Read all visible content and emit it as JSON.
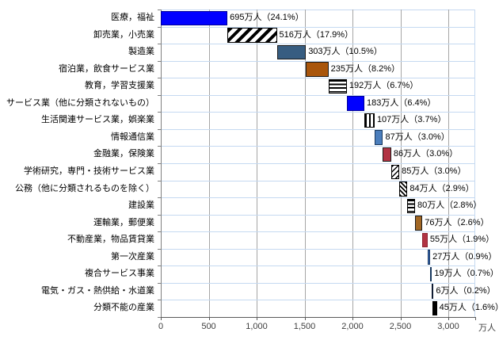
{
  "chart_data": {
    "type": "bar",
    "subtype": "horizontal-waterfall",
    "title": "",
    "unit_label": "万人",
    "total_value": 2881,
    "legend": "none",
    "x_axis": {
      "tick_values": [
        0,
        500,
        1000,
        1500,
        2000,
        2500,
        3000
      ],
      "tick_labels": [
        "0",
        "500",
        "1,000",
        "1,500",
        "2,000",
        "2,500",
        "3,000"
      ],
      "min": 0,
      "max_visible": 3280,
      "gridlines": "vertical-solid-gray"
    },
    "categories": [
      "医療，福祉",
      "卸売業，小売業",
      "製造業",
      "宿泊業，飲食サービス業",
      "教育，学習支援業",
      "サービス業（他に分類されないもの）",
      "生活関連サービス業，娯楽業",
      "情報通信業",
      "金融業，保険業",
      "学術研究，専門・技術サービス業",
      "公務（他に分類されるものを除く）",
      "建設業",
      "運輸業，郵便業",
      "不動産業，物品賃貸業",
      "第一次産業",
      "複合サービス事業",
      "電気・ガス・熱供給・水道業",
      "分類不能の産業"
    ],
    "values": [
      695,
      516,
      303,
      235,
      192,
      183,
      107,
      87,
      86,
      85,
      84,
      80,
      76,
      55,
      27,
      19,
      6,
      45
    ],
    "percentages": [
      24.1,
      17.9,
      10.5,
      8.2,
      6.7,
      6.4,
      3.7,
      3.0,
      3.0,
      3.0,
      2.9,
      2.8,
      2.6,
      1.9,
      0.9,
      0.7,
      0.2,
      1.6
    ],
    "data_labels": [
      "695万人（24.1%）",
      "516万人（17.9%）",
      "303万人（10.5%）",
      "235万人（8.2%）",
      "192万人（6.7%）",
      "183万人（6.4%）",
      "107万人（3.7%）",
      "87万人（3.0%）",
      "86万人（3.0%）",
      "85万人（3.0%）",
      "84万人（2.9%）",
      "80万人（2.8%）",
      "76万人（2.6%）",
      "55万人（1.9%）",
      "27万人（0.9%）",
      "19万人（0.7%）",
      "6万人（0.2%）",
      "45万人（1.6%）"
    ],
    "bar_styles": [
      {
        "pattern": "solid",
        "fill": "#0000FF",
        "border": "#000099"
      },
      {
        "pattern": "diagonal-wide",
        "fill": "#FFFFFF",
        "border": "#000000"
      },
      {
        "pattern": "solid",
        "fill": "#375D81",
        "border": "#1A1A1A"
      },
      {
        "pattern": "solid",
        "fill": "#A9560C",
        "border": "#1A1A1A"
      },
      {
        "pattern": "horizontal-lines",
        "fill": "#FFFFFF",
        "border": "#000000"
      },
      {
        "pattern": "solid",
        "fill": "#0000FF",
        "border": "#000099"
      },
      {
        "pattern": "vertical-lines",
        "fill": "#FFFFFF",
        "border": "#000000"
      },
      {
        "pattern": "solid",
        "fill": "#4B7EBC",
        "border": "#17375D"
      },
      {
        "pattern": "solid",
        "fill": "#B13343",
        "border": "#1A1A1A"
      },
      {
        "pattern": "diagonal-thin",
        "fill": "#FFFFFF",
        "border": "#000000"
      },
      {
        "pattern": "diagonal-thin-dense",
        "fill": "#FFFFFF",
        "border": "#000000"
      },
      {
        "pattern": "horizontal-lines",
        "fill": "#FFFFFF",
        "border": "#000000"
      },
      {
        "pattern": "solid",
        "fill": "#A26724",
        "border": "#1A1A1A"
      },
      {
        "pattern": "solid",
        "fill": "#B13343",
        "border": "#8E2533"
      },
      {
        "pattern": "solid",
        "fill": "#4472C4",
        "border": "#17375D"
      },
      {
        "pattern": "solid",
        "fill": "#1F3864",
        "border": "#17375D"
      },
      {
        "pattern": "solid",
        "fill": "#17375D",
        "border": "#101C33"
      },
      {
        "pattern": "solid",
        "fill": "#000000",
        "border": "#000000"
      }
    ],
    "colors": {
      "grid_vertical": "#A6A6A6",
      "grid_row": "#C5D9F1",
      "plot_border": "#C5D9F1",
      "axis_x": "#595959",
      "axis_y": "#808080",
      "text": "#000000",
      "background": "#FFFFFF"
    }
  }
}
